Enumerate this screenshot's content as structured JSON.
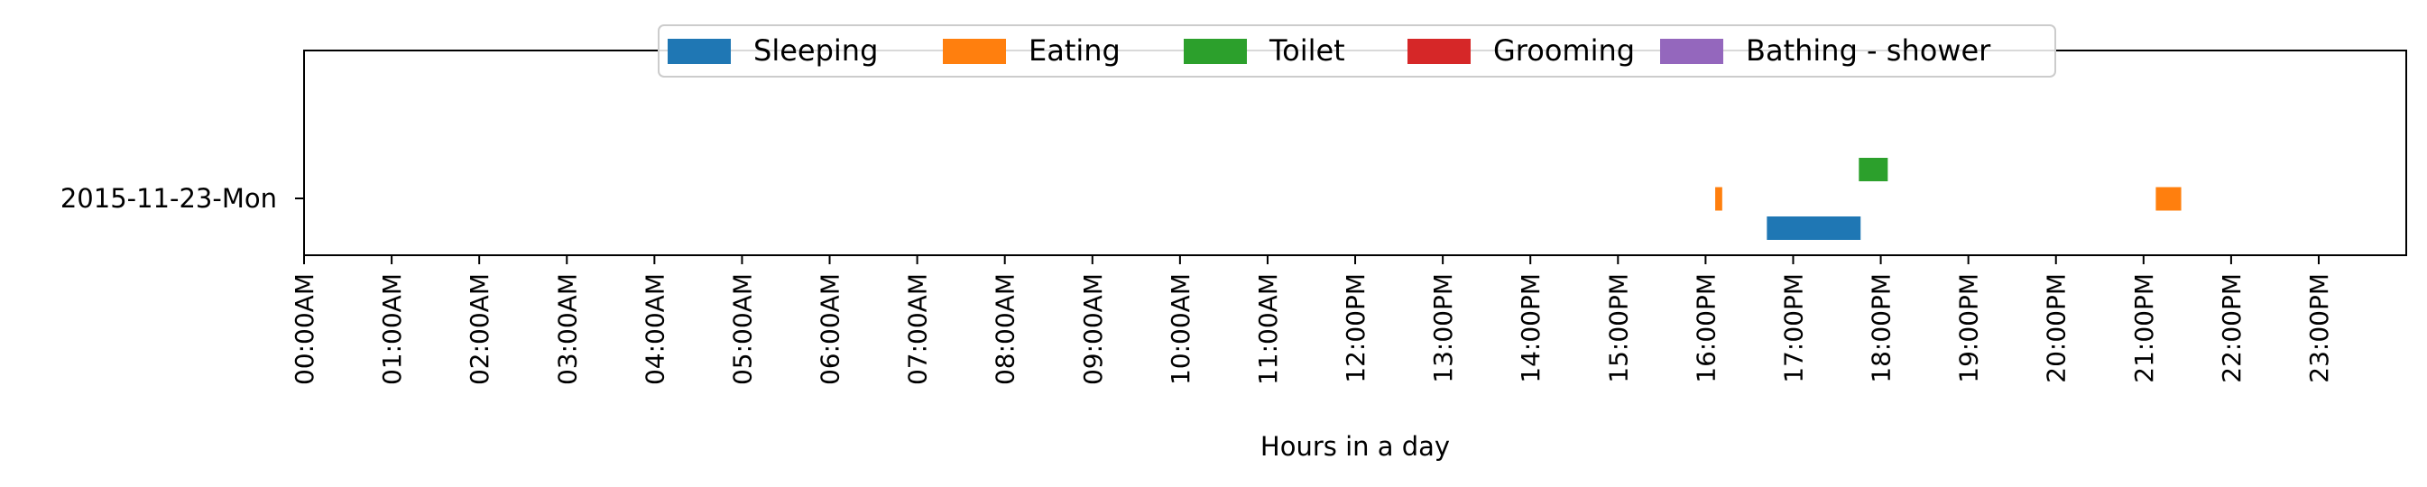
{
  "chart_data": {
    "type": "bar",
    "orientation": "horizontal-timeline",
    "title": "",
    "xlabel": "Hours in a day",
    "ylabel": "",
    "xlim": [
      0,
      24
    ],
    "x_ticks": [
      "00:00AM",
      "01:00AM",
      "02:00AM",
      "03:00AM",
      "04:00AM",
      "05:00AM",
      "06:00AM",
      "07:00AM",
      "08:00AM",
      "09:00AM",
      "10:00AM",
      "11:00AM",
      "12:00PM",
      "13:00PM",
      "14:00PM",
      "15:00PM",
      "16:00PM",
      "17:00PM",
      "18:00PM",
      "19:00PM",
      "20:00PM",
      "21:00PM",
      "22:00PM",
      "23:00PM"
    ],
    "categories": [
      "2015-11-23-Mon"
    ],
    "legend_position": "top-center",
    "grid": false,
    "series": [
      {
        "name": "Sleeping",
        "color": "#1f77b4",
        "lane": 0,
        "intervals": [
          {
            "start": 16.7,
            "end": 17.77
          }
        ]
      },
      {
        "name": "Eating",
        "color": "#ff7f0e",
        "lane": 1,
        "intervals": [
          {
            "start": 16.11,
            "end": 16.19
          },
          {
            "start": 21.14,
            "end": 21.43
          }
        ]
      },
      {
        "name": "Toilet",
        "color": "#2ca02c",
        "lane": 2,
        "intervals": [
          {
            "start": 17.75,
            "end": 18.08
          }
        ]
      },
      {
        "name": "Grooming",
        "color": "#d62728",
        "lane": 3,
        "intervals": []
      },
      {
        "name": "Bathing - shower",
        "color": "#9467bd",
        "lane": 4,
        "intervals": []
      }
    ]
  }
}
